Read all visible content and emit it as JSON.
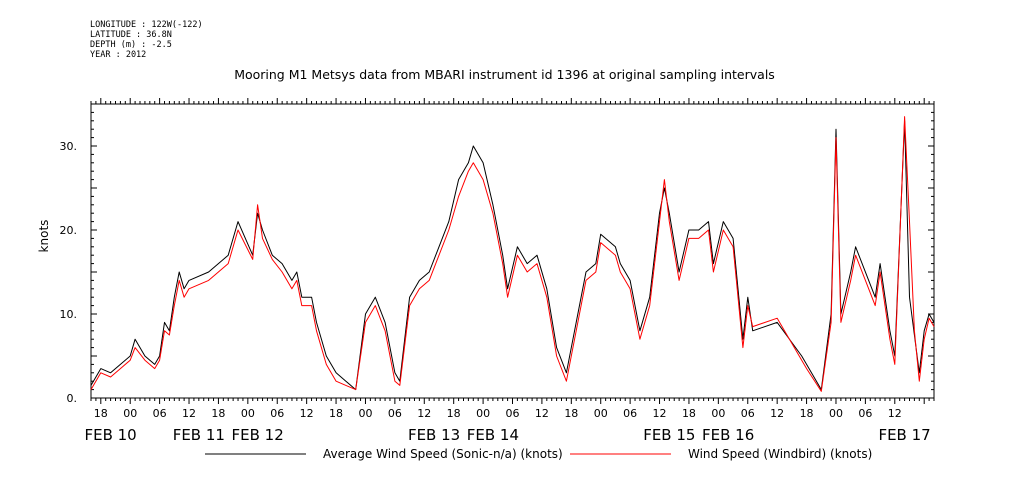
{
  "metadata": {
    "longitude": "LONGITUDE : 122W(-122)",
    "latitude": "LATITUDE : 36.8N",
    "depth": "DEPTH (m) : -2.5",
    "year": "YEAR : 2012"
  },
  "chart_data": {
    "type": "line",
    "title": "Mooring M1 Metsys data from MBARI instrument id 1396 at original sampling intervals",
    "ylabel": "knots",
    "xlabel": "",
    "ylim": [
      0,
      35
    ],
    "xlim": [
      "2012-02-10T16:00",
      "2012-02-17T20:00"
    ],
    "y_ticks": [
      0,
      10,
      20,
      30
    ],
    "y_tick_labels": [
      "0.",
      "10.",
      "20.",
      "30."
    ],
    "x_hour_ticks": [
      "2012-02-10T18:00",
      "2012-02-11T00:00",
      "2012-02-11T06:00",
      "2012-02-11T12:00",
      "2012-02-11T18:00",
      "2012-02-12T00:00",
      "2012-02-12T06:00",
      "2012-02-12T12:00",
      "2012-02-12T18:00",
      "2012-02-13T00:00",
      "2012-02-13T06:00",
      "2012-02-13T12:00",
      "2012-02-13T18:00",
      "2012-02-14T00:00",
      "2012-02-14T06:00",
      "2012-02-14T12:00",
      "2012-02-14T18:00",
      "2012-02-15T00:00",
      "2012-02-15T06:00",
      "2012-02-15T12:00",
      "2012-02-15T18:00",
      "2012-02-16T00:00",
      "2012-02-16T06:00",
      "2012-02-16T12:00",
      "2012-02-16T18:00",
      "2012-02-17T00:00",
      "2012-02-17T06:00",
      "2012-02-17T12:00"
    ],
    "x_hour_labels": [
      "18",
      "00",
      "06",
      "12",
      "18",
      "00",
      "06",
      "12",
      "18",
      "00",
      "06",
      "12",
      "18",
      "00",
      "06",
      "12",
      "18",
      "00",
      "06",
      "12",
      "18",
      "00",
      "06",
      "12",
      "18",
      "00",
      "06",
      "12"
    ],
    "x_date_labels": [
      {
        "label": "FEB 10",
        "at": "2012-02-10T20:00"
      },
      {
        "label": "FEB 11",
        "at": "2012-02-11T14:00"
      },
      {
        "label": "FEB 12",
        "at": "2012-02-12T02:00"
      },
      {
        "label": "FEB 13",
        "at": "2012-02-13T14:00"
      },
      {
        "label": "FEB 14",
        "at": "2012-02-14T02:00"
      },
      {
        "label": "FEB 15",
        "at": "2012-02-15T14:00"
      },
      {
        "label": "FEB 16",
        "at": "2012-02-16T02:00"
      },
      {
        "label": "FEB 17",
        "at": "2012-02-17T14:00"
      }
    ],
    "grid": false,
    "legend_position": "bottom",
    "series": [
      {
        "name": "Average Wind Speed (Sonic-n/a) (knots)",
        "color": "#000000",
        "points": [
          [
            "2012-02-10T16:00",
            1.5
          ],
          [
            "2012-02-10T18:00",
            3.5
          ],
          [
            "2012-02-10T20:00",
            3
          ],
          [
            "2012-02-10T22:00",
            4
          ],
          [
            "2012-02-11T00:00",
            5
          ],
          [
            "2012-02-11T01:00",
            7
          ],
          [
            "2012-02-11T03:00",
            5
          ],
          [
            "2012-02-11T05:00",
            4
          ],
          [
            "2012-02-11T06:00",
            5
          ],
          [
            "2012-02-11T07:00",
            9
          ],
          [
            "2012-02-11T08:00",
            8
          ],
          [
            "2012-02-11T09:00",
            12
          ],
          [
            "2012-02-11T10:00",
            15
          ],
          [
            "2012-02-11T11:00",
            13
          ],
          [
            "2012-02-11T12:00",
            14
          ],
          [
            "2012-02-11T16:00",
            15
          ],
          [
            "2012-02-11T20:00",
            17
          ],
          [
            "2012-02-11T22:00",
            21
          ],
          [
            "2012-02-12T01:00",
            17
          ],
          [
            "2012-02-12T02:00",
            22
          ],
          [
            "2012-02-12T03:00",
            20
          ],
          [
            "2012-02-12T05:00",
            17
          ],
          [
            "2012-02-12T07:00",
            16
          ],
          [
            "2012-02-12T09:00",
            14
          ],
          [
            "2012-02-12T10:00",
            15
          ],
          [
            "2012-02-12T11:00",
            12
          ],
          [
            "2012-02-12T13:00",
            12
          ],
          [
            "2012-02-12T14:00",
            9
          ],
          [
            "2012-02-12T16:00",
            5
          ],
          [
            "2012-02-12T18:00",
            3
          ],
          [
            "2012-02-12T20:00",
            2
          ],
          [
            "2012-02-12T22:00",
            1
          ],
          [
            "2012-02-13T00:00",
            10
          ],
          [
            "2012-02-13T02:00",
            12
          ],
          [
            "2012-02-13T04:00",
            9
          ],
          [
            "2012-02-13T06:00",
            3
          ],
          [
            "2012-02-13T07:00",
            2
          ],
          [
            "2012-02-13T09:00",
            12
          ],
          [
            "2012-02-13T11:00",
            14
          ],
          [
            "2012-02-13T13:00",
            15
          ],
          [
            "2012-02-13T15:00",
            18
          ],
          [
            "2012-02-13T17:00",
            21
          ],
          [
            "2012-02-13T19:00",
            26
          ],
          [
            "2012-02-13T21:00",
            28
          ],
          [
            "2012-02-13T22:00",
            30
          ],
          [
            "2012-02-14T00:00",
            28
          ],
          [
            "2012-02-14T02:00",
            23
          ],
          [
            "2012-02-14T04:00",
            17
          ],
          [
            "2012-02-14T05:00",
            13
          ],
          [
            "2012-02-14T07:00",
            18
          ],
          [
            "2012-02-14T09:00",
            16
          ],
          [
            "2012-02-14T11:00",
            17
          ],
          [
            "2012-02-14T13:00",
            13
          ],
          [
            "2012-02-14T15:00",
            6
          ],
          [
            "2012-02-14T17:00",
            3
          ],
          [
            "2012-02-14T19:00",
            9
          ],
          [
            "2012-02-14T21:00",
            15
          ],
          [
            "2012-02-14T23:00",
            16
          ],
          [
            "2012-02-15T00:00",
            19.5
          ],
          [
            "2012-02-15T03:00",
            18
          ],
          [
            "2012-02-15T04:00",
            16
          ],
          [
            "2012-02-15T06:00",
            14
          ],
          [
            "2012-02-15T08:00",
            8
          ],
          [
            "2012-02-15T10:00",
            12
          ],
          [
            "2012-02-15T12:00",
            22
          ],
          [
            "2012-02-15T13:00",
            25
          ],
          [
            "2012-02-15T14:00",
            22
          ],
          [
            "2012-02-15T16:00",
            15
          ],
          [
            "2012-02-15T18:00",
            20
          ],
          [
            "2012-02-15T20:00",
            20
          ],
          [
            "2012-02-15T22:00",
            21
          ],
          [
            "2012-02-15T23:00",
            16
          ],
          [
            "2012-02-16T01:00",
            21
          ],
          [
            "2012-02-16T03:00",
            19
          ],
          [
            "2012-02-16T05:00",
            7
          ],
          [
            "2012-02-16T06:00",
            12
          ],
          [
            "2012-02-16T07:00",
            8
          ],
          [
            "2012-02-16T12:00",
            9
          ],
          [
            "2012-02-16T17:00",
            5
          ],
          [
            "2012-02-16T18:00",
            4
          ],
          [
            "2012-02-16T21:00",
            1
          ],
          [
            "2012-02-16T23:00",
            10
          ],
          [
            "2012-02-17T00:00",
            32
          ],
          [
            "2012-02-17T01:00",
            10
          ],
          [
            "2012-02-17T03:00",
            15
          ],
          [
            "2012-02-17T04:00",
            18
          ],
          [
            "2012-02-17T08:00",
            12
          ],
          [
            "2012-02-17T09:00",
            16
          ],
          [
            "2012-02-17T11:00",
            8
          ],
          [
            "2012-02-17T12:00",
            5
          ],
          [
            "2012-02-17T14:00",
            33
          ],
          [
            "2012-02-17T15:00",
            12
          ],
          [
            "2012-02-17T17:00",
            3
          ],
          [
            "2012-02-17T18:00",
            8
          ],
          [
            "2012-02-17T19:00",
            10
          ],
          [
            "2012-02-17T20:00",
            9
          ]
        ]
      },
      {
        "name": "Wind Speed (Windbird) (knots)",
        "color": "#ff0000",
        "points": [
          [
            "2012-02-10T16:00",
            1
          ],
          [
            "2012-02-10T18:00",
            3
          ],
          [
            "2012-02-10T20:00",
            2.5
          ],
          [
            "2012-02-10T22:00",
            3.5
          ],
          [
            "2012-02-11T00:00",
            4.5
          ],
          [
            "2012-02-11T01:00",
            6
          ],
          [
            "2012-02-11T03:00",
            4.5
          ],
          [
            "2012-02-11T05:00",
            3.5
          ],
          [
            "2012-02-11T06:00",
            4.5
          ],
          [
            "2012-02-11T07:00",
            8
          ],
          [
            "2012-02-11T08:00",
            7.5
          ],
          [
            "2012-02-11T09:00",
            11
          ],
          [
            "2012-02-11T10:00",
            14
          ],
          [
            "2012-02-11T11:00",
            12
          ],
          [
            "2012-02-11T12:00",
            13
          ],
          [
            "2012-02-11T16:00",
            14
          ],
          [
            "2012-02-11T20:00",
            16
          ],
          [
            "2012-02-11T22:00",
            20
          ],
          [
            "2012-02-12T01:00",
            16.5
          ],
          [
            "2012-02-12T02:00",
            23
          ],
          [
            "2012-02-12T03:00",
            19
          ],
          [
            "2012-02-12T05:00",
            16.5
          ],
          [
            "2012-02-12T07:00",
            15
          ],
          [
            "2012-02-12T09:00",
            13
          ],
          [
            "2012-02-12T10:00",
            14
          ],
          [
            "2012-02-12T11:00",
            11
          ],
          [
            "2012-02-12T13:00",
            11
          ],
          [
            "2012-02-12T14:00",
            8
          ],
          [
            "2012-02-12T16:00",
            4
          ],
          [
            "2012-02-12T18:00",
            2
          ],
          [
            "2012-02-12T20:00",
            1.5
          ],
          [
            "2012-02-12T22:00",
            1
          ],
          [
            "2012-02-13T00:00",
            9
          ],
          [
            "2012-02-13T02:00",
            11
          ],
          [
            "2012-02-13T04:00",
            8
          ],
          [
            "2012-02-13T06:00",
            2
          ],
          [
            "2012-02-13T07:00",
            1.5
          ],
          [
            "2012-02-13T09:00",
            11
          ],
          [
            "2012-02-13T11:00",
            13
          ],
          [
            "2012-02-13T13:00",
            14
          ],
          [
            "2012-02-13T15:00",
            17
          ],
          [
            "2012-02-13T17:00",
            20
          ],
          [
            "2012-02-13T19:00",
            24
          ],
          [
            "2012-02-13T21:00",
            27
          ],
          [
            "2012-02-13T22:00",
            28
          ],
          [
            "2012-02-14T00:00",
            26
          ],
          [
            "2012-02-14T02:00",
            22
          ],
          [
            "2012-02-14T04:00",
            16
          ],
          [
            "2012-02-14T05:00",
            12
          ],
          [
            "2012-02-14T07:00",
            17
          ],
          [
            "2012-02-14T09:00",
            15
          ],
          [
            "2012-02-14T11:00",
            16
          ],
          [
            "2012-02-14T13:00",
            12
          ],
          [
            "2012-02-14T15:00",
            5
          ],
          [
            "2012-02-14T17:00",
            2
          ],
          [
            "2012-02-14T19:00",
            8
          ],
          [
            "2012-02-14T21:00",
            14
          ],
          [
            "2012-02-14T23:00",
            15
          ],
          [
            "2012-02-15T00:00",
            18.5
          ],
          [
            "2012-02-15T03:00",
            17
          ],
          [
            "2012-02-15T04:00",
            15
          ],
          [
            "2012-02-15T06:00",
            13
          ],
          [
            "2012-02-15T08:00",
            7
          ],
          [
            "2012-02-15T10:00",
            11
          ],
          [
            "2012-02-15T12:00",
            21
          ],
          [
            "2012-02-15T13:00",
            26
          ],
          [
            "2012-02-15T14:00",
            21
          ],
          [
            "2012-02-15T16:00",
            14
          ],
          [
            "2012-02-15T18:00",
            19
          ],
          [
            "2012-02-15T20:00",
            19
          ],
          [
            "2012-02-15T22:00",
            20
          ],
          [
            "2012-02-15T23:00",
            15
          ],
          [
            "2012-02-16T01:00",
            20
          ],
          [
            "2012-02-16T03:00",
            18
          ],
          [
            "2012-02-16T05:00",
            6
          ],
          [
            "2012-02-16T06:00",
            11
          ],
          [
            "2012-02-16T07:00",
            8.5
          ],
          [
            "2012-02-16T12:00",
            9.5
          ],
          [
            "2012-02-16T17:00",
            4.5
          ],
          [
            "2012-02-16T18:00",
            3.5
          ],
          [
            "2012-02-16T21:00",
            0.8
          ],
          [
            "2012-02-16T23:00",
            9
          ],
          [
            "2012-02-17T00:00",
            31
          ],
          [
            "2012-02-17T01:00",
            9
          ],
          [
            "2012-02-17T03:00",
            14
          ],
          [
            "2012-02-17T04:00",
            17
          ],
          [
            "2012-02-17T08:00",
            11
          ],
          [
            "2012-02-17T09:00",
            15
          ],
          [
            "2012-02-17T11:00",
            7
          ],
          [
            "2012-02-17T12:00",
            4
          ],
          [
            "2012-02-17T14:00",
            33.5
          ],
          [
            "2012-02-17T15:00",
            21
          ],
          [
            "2012-02-17T16:00",
            8
          ],
          [
            "2012-02-17T17:00",
            2
          ],
          [
            "2012-02-17T18:00",
            7
          ],
          [
            "2012-02-17T19:00",
            9.5
          ],
          [
            "2012-02-17T20:00",
            8.5
          ]
        ]
      }
    ]
  }
}
